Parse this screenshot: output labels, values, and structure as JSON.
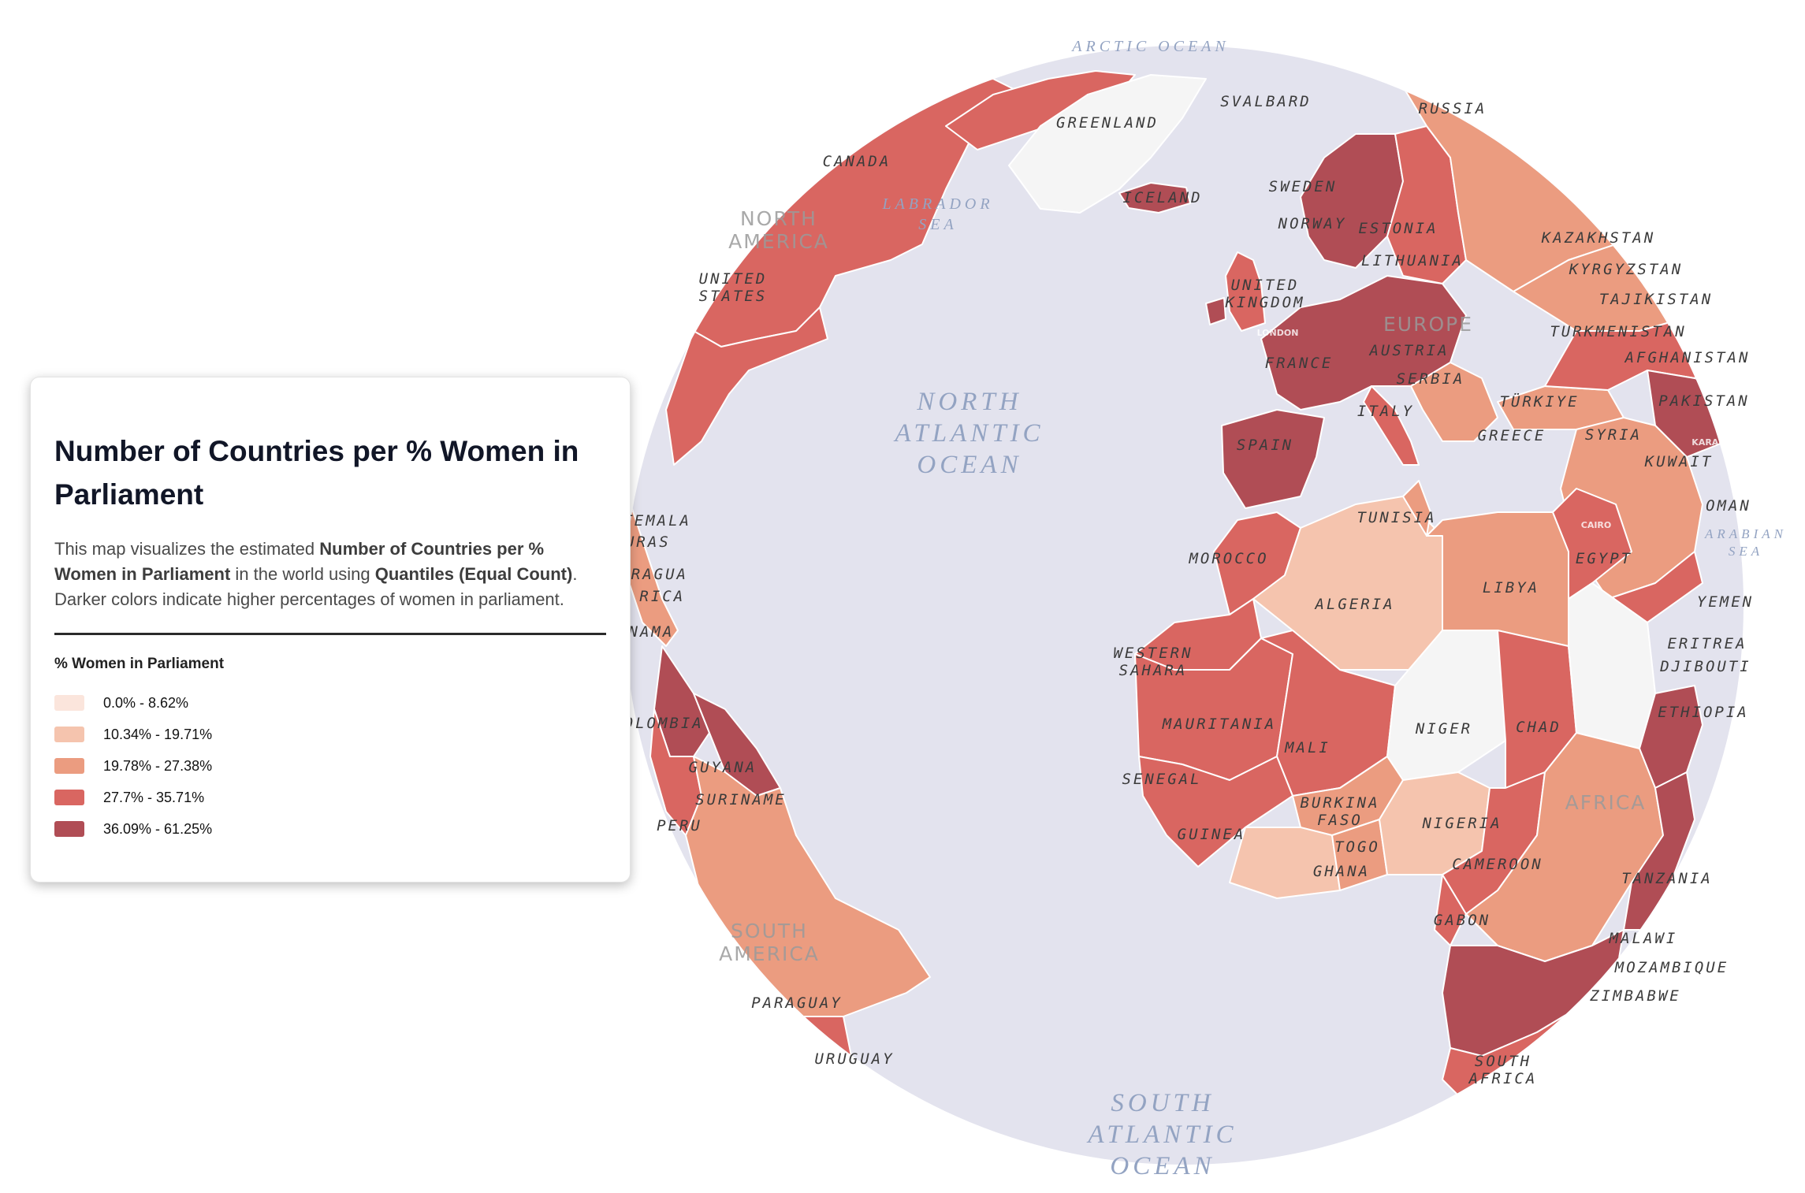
{
  "panel": {
    "title": "Number of Countries per % Women in Parliament",
    "desc_1": "This map visualizes the estimated ",
    "desc_b1": "Number of Countries per % Women in Parliament",
    "desc_2": " in the world using ",
    "desc_b2": "Quantiles (Equal Count)",
    "desc_3": ". Darker colors indicate higher percentages of women in parliament.",
    "legend_title": "% Women in Parliament",
    "legend": [
      {
        "label": "0.0% - 8.62%",
        "color": "#fbe5dc"
      },
      {
        "label": "10.34% - 19.71%",
        "color": "#f5c4ae"
      },
      {
        "label": "19.78% - 27.38%",
        "color": "#eb9c80"
      },
      {
        "label": "27.7% - 35.71%",
        "color": "#d96661"
      },
      {
        "label": "36.09% - 61.25%",
        "color": "#b04d55"
      }
    ]
  },
  "colors": {
    "ocean": "#e3e3ee",
    "no_data": "#f5f5f5",
    "border": "#ffffff",
    "ocean_label": "#93a3c2"
  },
  "map": {
    "ocean_labels": [
      {
        "id": "arctic-ocean",
        "lines": [
          "ARCTIC OCEAN"
        ]
      },
      {
        "id": "labrador-sea",
        "lines": [
          "LABRADOR",
          "SEA"
        ]
      },
      {
        "id": "north-atlantic-ocean",
        "lines": [
          "NORTH",
          "ATLANTIC",
          "OCEAN"
        ]
      },
      {
        "id": "south-atlantic-ocean",
        "lines": [
          "SOUTH",
          "ATLANTIC",
          "OCEAN"
        ]
      },
      {
        "id": "arabian-sea",
        "lines": [
          "ARABIAN",
          "SEA"
        ]
      }
    ],
    "continent_labels": [
      {
        "id": "north-america",
        "lines": [
          "NORTH",
          "AMERICA"
        ]
      },
      {
        "id": "europe",
        "lines": [
          "EUROPE"
        ]
      },
      {
        "id": "africa",
        "lines": [
          "AFRICA"
        ]
      },
      {
        "id": "south-america",
        "lines": [
          "SOUTH",
          "AMERICA"
        ]
      }
    ],
    "country_labels": [
      {
        "id": "svalbard",
        "lines": [
          "SVALBARD"
        ]
      },
      {
        "id": "russia",
        "lines": [
          "RUSSIA"
        ]
      },
      {
        "id": "greenland",
        "lines": [
          "GREENLAND"
        ]
      },
      {
        "id": "canada",
        "lines": [
          "CANADA"
        ]
      },
      {
        "id": "iceland",
        "lines": [
          "ICELAND"
        ]
      },
      {
        "id": "sweden",
        "lines": [
          "SWEDEN"
        ]
      },
      {
        "id": "norway",
        "lines": [
          "NORWAY"
        ]
      },
      {
        "id": "estonia",
        "lines": [
          "ESTONIA"
        ]
      },
      {
        "id": "lithuania",
        "lines": [
          "LITHUANIA"
        ]
      },
      {
        "id": "kazakhstan",
        "lines": [
          "KAZAKHSTAN"
        ]
      },
      {
        "id": "kyrgyzstan",
        "lines": [
          "KYRGYZSTAN"
        ]
      },
      {
        "id": "tajikistan",
        "lines": [
          "TAJIKISTAN"
        ]
      },
      {
        "id": "turkmenistan",
        "lines": [
          "TURKMENISTAN"
        ]
      },
      {
        "id": "afghanistan",
        "lines": [
          "AFGHANISTAN"
        ]
      },
      {
        "id": "pakistan",
        "lines": [
          "PAKISTAN"
        ]
      },
      {
        "id": "united-states",
        "lines": [
          "UNITED",
          "STATES"
        ]
      },
      {
        "id": "united-kingdom",
        "lines": [
          "UNITED",
          "KINGDOM"
        ]
      },
      {
        "id": "austria",
        "lines": [
          "AUSTRIA"
        ]
      },
      {
        "id": "france",
        "lines": [
          "FRANCE"
        ]
      },
      {
        "id": "serbia",
        "lines": [
          "SERBIA"
        ]
      },
      {
        "id": "turkiye",
        "lines": [
          "TÜRKIYE"
        ]
      },
      {
        "id": "italy",
        "lines": [
          "ITALY"
        ]
      },
      {
        "id": "greece",
        "lines": [
          "GREECE"
        ]
      },
      {
        "id": "syria",
        "lines": [
          "SYRIA"
        ]
      },
      {
        "id": "kuwait",
        "lines": [
          "KUWAIT"
        ]
      },
      {
        "id": "oman",
        "lines": [
          "OMAN"
        ]
      },
      {
        "id": "spain",
        "lines": [
          "SPAIN"
        ]
      },
      {
        "id": "tunisia",
        "lines": [
          "TUNISIA"
        ]
      },
      {
        "id": "guatemala",
        "lines": [
          "GUATEMALA"
        ]
      },
      {
        "id": "honduras",
        "lines": [
          "HONDURAS"
        ]
      },
      {
        "id": "nicaragua",
        "lines": [
          "NICARAGUA"
        ]
      },
      {
        "id": "costa-rica",
        "lines": [
          "COSTA RICA"
        ]
      },
      {
        "id": "panama",
        "lines": [
          "PANAMA"
        ]
      },
      {
        "id": "morocco",
        "lines": [
          "MOROCCO"
        ]
      },
      {
        "id": "egypt",
        "lines": [
          "EGYPT"
        ]
      },
      {
        "id": "libya",
        "lines": [
          "LIBYA"
        ]
      },
      {
        "id": "algeria",
        "lines": [
          "ALGERIA"
        ]
      },
      {
        "id": "yemen",
        "lines": [
          "YEMEN"
        ]
      },
      {
        "id": "eritrea",
        "lines": [
          "ERITREA"
        ]
      },
      {
        "id": "djibouti",
        "lines": [
          "DJIBOUTI"
        ]
      },
      {
        "id": "western-sahara",
        "lines": [
          "WESTERN",
          "SAHARA"
        ]
      },
      {
        "id": "ethiopia",
        "lines": [
          "ETHIOPIA"
        ]
      },
      {
        "id": "mauritania",
        "lines": [
          "MAURITANIA"
        ]
      },
      {
        "id": "niger",
        "lines": [
          "NIGER"
        ]
      },
      {
        "id": "chad",
        "lines": [
          "CHAD"
        ]
      },
      {
        "id": "colombia",
        "lines": [
          "COLOMBIA"
        ]
      },
      {
        "id": "mali",
        "lines": [
          "MALI"
        ]
      },
      {
        "id": "guyana",
        "lines": [
          "GUYANA"
        ]
      },
      {
        "id": "senegal",
        "lines": [
          "SENEGAL"
        ]
      },
      {
        "id": "suriname",
        "lines": [
          "SURINAME"
        ]
      },
      {
        "id": "burkina-faso",
        "lines": [
          "BURKINA",
          "FASO"
        ]
      },
      {
        "id": "nigeria",
        "lines": [
          "NIGERIA"
        ]
      },
      {
        "id": "peru",
        "lines": [
          "PERU"
        ]
      },
      {
        "id": "guinea",
        "lines": [
          "GUINEA"
        ]
      },
      {
        "id": "togo",
        "lines": [
          "TOGO"
        ]
      },
      {
        "id": "cameroon",
        "lines": [
          "CAMEROON"
        ]
      },
      {
        "id": "ghana",
        "lines": [
          "GHANA"
        ]
      },
      {
        "id": "tanzania",
        "lines": [
          "TANZANIA"
        ]
      },
      {
        "id": "gabon",
        "lines": [
          "GABON"
        ]
      },
      {
        "id": "malawi",
        "lines": [
          "MALAWI"
        ]
      },
      {
        "id": "mozambique",
        "lines": [
          "MOZAMBIQUE"
        ]
      },
      {
        "id": "paraguay",
        "lines": [
          "PARAGUAY"
        ]
      },
      {
        "id": "zimbabwe",
        "lines": [
          "ZIMBABWE"
        ]
      },
      {
        "id": "south-africa",
        "lines": [
          "SOUTH",
          "AFRICA"
        ]
      },
      {
        "id": "uruguay",
        "lines": [
          "URUGUAY"
        ]
      }
    ],
    "city_labels": [
      {
        "id": "london",
        "text": "LONDON"
      },
      {
        "id": "cairo",
        "text": "CAIRO"
      },
      {
        "id": "karachi",
        "text": "KARACHI"
      }
    ]
  }
}
